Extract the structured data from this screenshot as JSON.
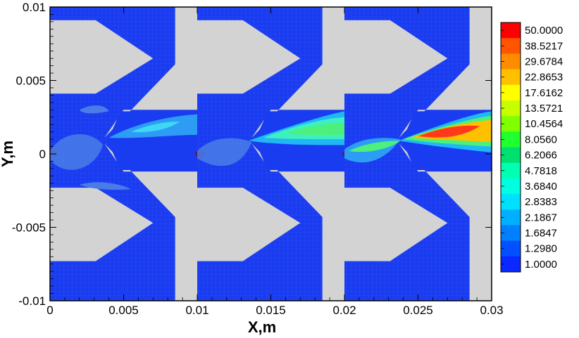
{
  "chart_data": {
    "type": "heatmap",
    "xlabel": "X,m",
    "ylabel": "Y,m",
    "xlim": [
      0,
      0.03
    ],
    "ylim": [
      -0.01,
      0.01
    ],
    "x_ticks": [
      "0",
      "0.005",
      "0.01",
      "0.015",
      "0.02",
      "0.025",
      "0.03"
    ],
    "x_tick_values": [
      0,
      0.005,
      0.01,
      0.015,
      0.02,
      0.025,
      0.03
    ],
    "y_ticks": [
      "0.01",
      "0.005",
      "0",
      "-0.005",
      "-0.01"
    ],
    "y_tick_values": [
      0.01,
      0.005,
      0,
      -0.005,
      -0.01
    ],
    "colorbar": {
      "levels": [
        "50.0000",
        "38.5217",
        "29.6784",
        "22.8653",
        "17.6162",
        "13.5721",
        "10.4564",
        "8.0560",
        "6.2066",
        "4.7818",
        "3.6840",
        "2.8383",
        "2.1867",
        "1.6847",
        "1.2980",
        "1.0000"
      ],
      "colors": [
        "#ff0000",
        "#ff5500",
        "#ff8c00",
        "#ffc000",
        "#ffff00",
        "#c8ff00",
        "#80ff00",
        "#20ff30",
        "#00e070",
        "#00ffb0",
        "#00ffe0",
        "#00e0ff",
        "#00b0ff",
        "#0080ff",
        "#0050ff",
        "#0a28ff"
      ]
    },
    "panels": [
      {
        "x_start": 0.0,
        "x_end": 0.01
      },
      {
        "x_start": 0.01,
        "x_end": 0.02
      },
      {
        "x_start": 0.02,
        "x_end": 0.03
      }
    ],
    "colors": {
      "background_field": "#1a3cf0",
      "solid": "#d3d3d3",
      "low_blob": "#4a7ce8",
      "core_dot": "#5a1f4d"
    }
  }
}
